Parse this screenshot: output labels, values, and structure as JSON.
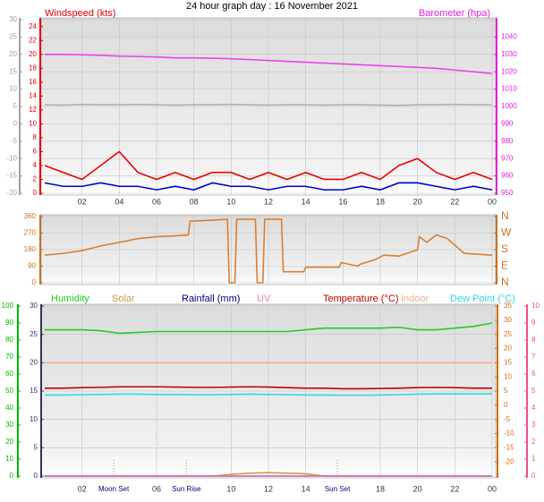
{
  "chart_data": [
    {
      "type": "line",
      "title": "24 hour graph day : 16 November 2021",
      "y_label": "Windspeed (kts)",
      "y2_label": "Barometer (hpa)",
      "xlim": [
        0,
        24
      ],
      "xticks": [
        {
          "value": 2,
          "label": "02"
        },
        {
          "value": 4,
          "label": "04"
        },
        {
          "value": 6,
          "label": "06"
        },
        {
          "value": 8,
          "label": "08"
        },
        {
          "value": 10,
          "label": "10"
        },
        12,
        14,
        16,
        18,
        20,
        22,
        {
          "value": 24,
          "label": "00"
        }
      ],
      "ylim": [
        0,
        25
      ],
      "yticks": [
        0,
        2,
        4,
        6,
        8,
        10,
        12,
        14,
        16,
        18,
        20,
        22,
        24
      ],
      "y_color": "#e00000",
      "y2lim": [
        950,
        1050
      ],
      "y2ticks": [
        950,
        960,
        970,
        980,
        990,
        1000,
        1010,
        1020,
        1030,
        1040
      ],
      "y2_color": "#e020e0",
      "y3lim": [
        -20,
        30
      ],
      "y3ticks": [
        -20,
        -15,
        -10,
        -5,
        0,
        5,
        10,
        15,
        20,
        25,
        30
      ],
      "y3_color": "#a0a0a0",
      "grid": true,
      "x": [
        0,
        1,
        2,
        3,
        4,
        5,
        6,
        7,
        8,
        9,
        10,
        11,
        12,
        13,
        14,
        15,
        16,
        17,
        18,
        19,
        20,
        21,
        22,
        23,
        24
      ],
      "series": [
        {
          "color": "#b0b0b0",
          "axis": "y3",
          "values": [
            5.5,
            5.4,
            5.6,
            5.5,
            5.5,
            5.6,
            5.5,
            5.4,
            5.5,
            5.5,
            5.6,
            5.5,
            5.4,
            5.5,
            5.5,
            5.4,
            5.5,
            5.5,
            5.4,
            5.3,
            5.5,
            5.5,
            5.6,
            5.5,
            5.5
          ]
        },
        {
          "color": "#ee0000",
          "values": [
            4,
            3,
            2,
            4,
            6,
            3,
            2,
            3,
            2,
            3,
            3,
            2,
            3,
            2,
            3,
            2,
            2,
            3,
            2,
            4,
            5,
            3,
            2,
            3,
            2
          ]
        },
        {
          "color": "#0000cc",
          "values": [
            1.5,
            1,
            1,
            1.5,
            1,
            1,
            0.5,
            1,
            0.5,
            1.5,
            1,
            1,
            0.5,
            1,
            1,
            0.5,
            0.5,
            1,
            0.5,
            1.5,
            1.5,
            1,
            0.5,
            1,
            0.5
          ]
        },
        {
          "color": "#ee40ee",
          "axis": "y2",
          "values": [
            1030,
            1030,
            1029.8,
            1029.5,
            1029,
            1028.8,
            1028.5,
            1028,
            1028,
            1027.8,
            1027.5,
            1027,
            1026.5,
            1026,
            1025.5,
            1025,
            1024.5,
            1024,
            1023.5,
            1023,
            1022.5,
            1022,
            1021,
            1020,
            1019
          ]
        }
      ]
    },
    {
      "type": "line",
      "xlim": [
        0,
        24
      ],
      "xticks": [
        2,
        4,
        6,
        8,
        10,
        12,
        14,
        16,
        18,
        20,
        22,
        24
      ],
      "ylim": [
        0,
        360
      ],
      "yticks": [
        0,
        90,
        180,
        270,
        360
      ],
      "y_color": "#c87020",
      "y2lim": [
        0,
        360
      ],
      "y2ticks": [
        {
          "value": 0,
          "label": "N"
        },
        {
          "value": 90,
          "label": "E"
        },
        {
          "value": 180,
          "label": "S"
        },
        {
          "value": 270,
          "label": "W"
        },
        {
          "value": 360,
          "label": "N"
        }
      ],
      "y2_color": "#c87020",
      "grid": true,
      "x": [
        0,
        1,
        2,
        3,
        4,
        5,
        6,
        7,
        7.7,
        7.8,
        9,
        9.8,
        9.9,
        10.2,
        10.3,
        11.3,
        11.4,
        11.7,
        11.8,
        12.7,
        12.8,
        13.9,
        14,
        15.8,
        15.9,
        16.8,
        16.9,
        17.7,
        18.2,
        19,
        20,
        20.1,
        20.5,
        21,
        21.6,
        22.5,
        24
      ],
      "series": [
        {
          "color": "#d88030",
          "values": [
            150,
            160,
            175,
            200,
            220,
            240,
            250,
            255,
            260,
            335,
            340,
            345,
            0,
            0,
            345,
            345,
            0,
            0,
            345,
            345,
            60,
            60,
            85,
            85,
            110,
            90,
            100,
            125,
            150,
            145,
            180,
            250,
            220,
            260,
            240,
            160,
            150
          ]
        }
      ]
    },
    {
      "type": "line",
      "xlim": [
        0,
        24
      ],
      "xticks": [
        {
          "value": 2,
          "label": "02"
        },
        {
          "value": 6,
          "label": "06"
        },
        {
          "value": 10,
          "label": "10"
        },
        12,
        14,
        18,
        20,
        22,
        {
          "value": 24,
          "label": "00"
        }
      ],
      "ylim": [
        0,
        100
      ],
      "yticks": [
        0,
        10,
        20,
        30,
        40,
        50,
        60,
        70,
        80,
        90,
        100
      ],
      "y_color": "#00bb00",
      "y2lim": [
        -25,
        35
      ],
      "y2ticks": [
        -20,
        -15,
        -10,
        -5,
        0,
        5,
        10,
        15,
        20,
        25,
        30,
        35
      ],
      "y2_color": "#d07010",
      "y3lim": [
        0,
        30
      ],
      "y3ticks": [
        0,
        5,
        10,
        15,
        20,
        25,
        30
      ],
      "y3_color": "#333366",
      "y4lim": [
        0,
        10
      ],
      "y4ticks": [
        0,
        1,
        2,
        3,
        4,
        5,
        6,
        7,
        8,
        9,
        10
      ],
      "y4_color": "#ee5090",
      "grid": true,
      "events": [
        {
          "label": "Moon Set",
          "x": 3.7
        },
        {
          "label": "Sun Rise",
          "x": 7.6
        },
        {
          "label": "Sun Set",
          "x": 15.7
        }
      ],
      "x": [
        0,
        1,
        2,
        3,
        4,
        5,
        6,
        7,
        8,
        9,
        10,
        11,
        12,
        13,
        14,
        15,
        16,
        17,
        18,
        19,
        20,
        21,
        22,
        23,
        24
      ],
      "series": [
        {
          "name": "Humidity",
          "color": "#22cc22",
          "values": [
            86,
            86,
            86,
            85.5,
            84,
            84.5,
            85,
            85,
            85,
            85,
            85,
            85,
            85,
            85,
            86,
            87,
            87,
            87,
            87,
            87.5,
            86,
            86,
            87,
            88,
            90
          ]
        },
        {
          "name": "Solar",
          "color": "#c8a040",
          "axis": "y3",
          "values": [
            0,
            0,
            0,
            0,
            0,
            0,
            0,
            0,
            0,
            0,
            0.3,
            0.5,
            0.6,
            0.5,
            0.4,
            0,
            0,
            0,
            0,
            0,
            0,
            0,
            0,
            0,
            0
          ]
        },
        {
          "name": "Rainfall (mm)",
          "color": "#000080",
          "axis": "y3",
          "values": [
            0,
            0,
            0,
            0,
            0,
            0,
            0,
            0,
            0,
            0,
            0,
            0,
            0,
            0,
            0,
            0,
            0,
            0,
            0,
            0,
            0,
            0,
            0,
            0,
            0
          ]
        },
        {
          "name": "UV",
          "color": "#ee80c0",
          "axis": "y4",
          "values": [
            0,
            0,
            0,
            0,
            0,
            0,
            0,
            0,
            0,
            0,
            0,
            0,
            0,
            0,
            0,
            0,
            0,
            0,
            0,
            0,
            0,
            0,
            0,
            0,
            0
          ]
        },
        {
          "name": "Temperature (°C)",
          "color": "#c00000",
          "axis": "y2",
          "values": [
            6,
            6,
            6.2,
            6.3,
            6.5,
            6.5,
            6.5,
            6.4,
            6.3,
            6.3,
            6.4,
            6.5,
            6.4,
            6.2,
            6,
            6,
            5.8,
            5.8,
            5.9,
            6,
            6.2,
            6.3,
            6.2,
            6,
            6
          ]
        },
        {
          "name": "Indoor",
          "color": "#f0b090",
          "axis": "y2",
          "values": [
            15,
            15,
            15,
            15,
            15,
            15,
            15,
            15,
            15,
            15,
            15,
            15,
            15,
            15,
            15,
            15,
            15,
            15,
            15,
            15,
            15,
            15,
            15,
            15,
            15
          ]
        },
        {
          "name": "Dew Point (°C)",
          "color": "#30d8e0",
          "axis": "y2",
          "values": [
            3.6,
            3.6,
            3.7,
            3.8,
            3.9,
            3.9,
            3.8,
            3.8,
            3.7,
            3.7,
            3.8,
            3.9,
            3.8,
            3.7,
            3.6,
            3.6,
            3.5,
            3.5,
            3.6,
            3.7,
            3.9,
            4,
            4,
            4,
            4
          ]
        }
      ]
    }
  ]
}
